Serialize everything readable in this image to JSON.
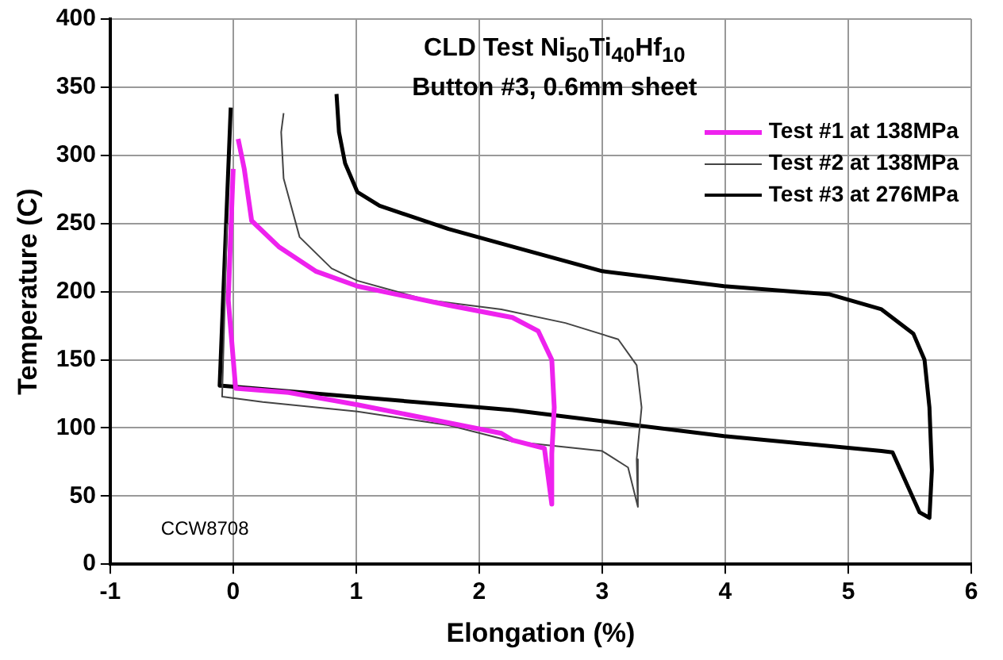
{
  "chart_data": {
    "type": "line",
    "title": "CLD Test  Ni$_{50}$Ti$_{40}$Hf$_{10}$",
    "subtitle": "Button #3,  0.6mm sheet",
    "xlabel": "Elongation (%)",
    "ylabel": "Temperature (C)",
    "xlim": [
      -1,
      6
    ],
    "xticks": [
      -1,
      0,
      1,
      2,
      3,
      4,
      5,
      6
    ],
    "ylim": [
      0,
      400
    ],
    "yticks": [
      0,
      50,
      100,
      150,
      200,
      250,
      300,
      350,
      400
    ],
    "grid": true,
    "legend": "top right",
    "marker": "none",
    "line_style": "solid",
    "annotations": [
      "CCW8708"
    ],
    "series": [
      {
        "name": "Test #1 at 138MPa",
        "color": "#ee22ee",
        "x": [
          0.04,
          0.09,
          0.15,
          0.37,
          0.67,
          1.01,
          1.75,
          2.27,
          2.48,
          2.59,
          2.61,
          2.59,
          2.59,
          2.53,
          2.27,
          2.18,
          1.01,
          0.45,
          0.02,
          -0.04,
          0
        ],
        "values": [
          312,
          290,
          252,
          233,
          215,
          204,
          190,
          181,
          171,
          150,
          115,
          81,
          44,
          85,
          91,
          96,
          117,
          126,
          129,
          194,
          290
        ]
      },
      {
        "name": "Test #2 at 138MPa",
        "color": "#444444",
        "x": [
          0.41,
          0.39,
          0.41,
          0.54,
          0.8,
          1.01,
          1.57,
          2.18,
          2.7,
          3.13,
          3.28,
          3.32,
          3.28,
          3.29,
          3.21,
          3,
          2.27,
          1.75,
          1.01,
          0.24,
          -0.09,
          -0.05
        ],
        "values": [
          331,
          317,
          283,
          240,
          217,
          208,
          194,
          187,
          177,
          165,
          146,
          115,
          77,
          42,
          71,
          83,
          90,
          102,
          112,
          119,
          123,
          250
        ]
      },
      {
        "name": "Test #3 at 276MPa",
        "color": "#000000",
        "x": [
          -0.02,
          -0.11,
          -0.09,
          2.27,
          3.99,
          5.27,
          5.36,
          5.58,
          5.66,
          5.68,
          5.66,
          5.62,
          5.53,
          5.27,
          4.85,
          3.99,
          3,
          2.27,
          1.75,
          1.19,
          1.01,
          0.91,
          0.86,
          0.84
        ],
        "values": [
          335,
          131,
          131,
          113,
          94,
          83,
          82,
          38,
          34,
          69,
          115,
          150,
          169,
          187,
          198,
          204,
          215,
          233,
          246,
          263,
          273,
          294,
          317,
          345
        ]
      }
    ]
  }
}
